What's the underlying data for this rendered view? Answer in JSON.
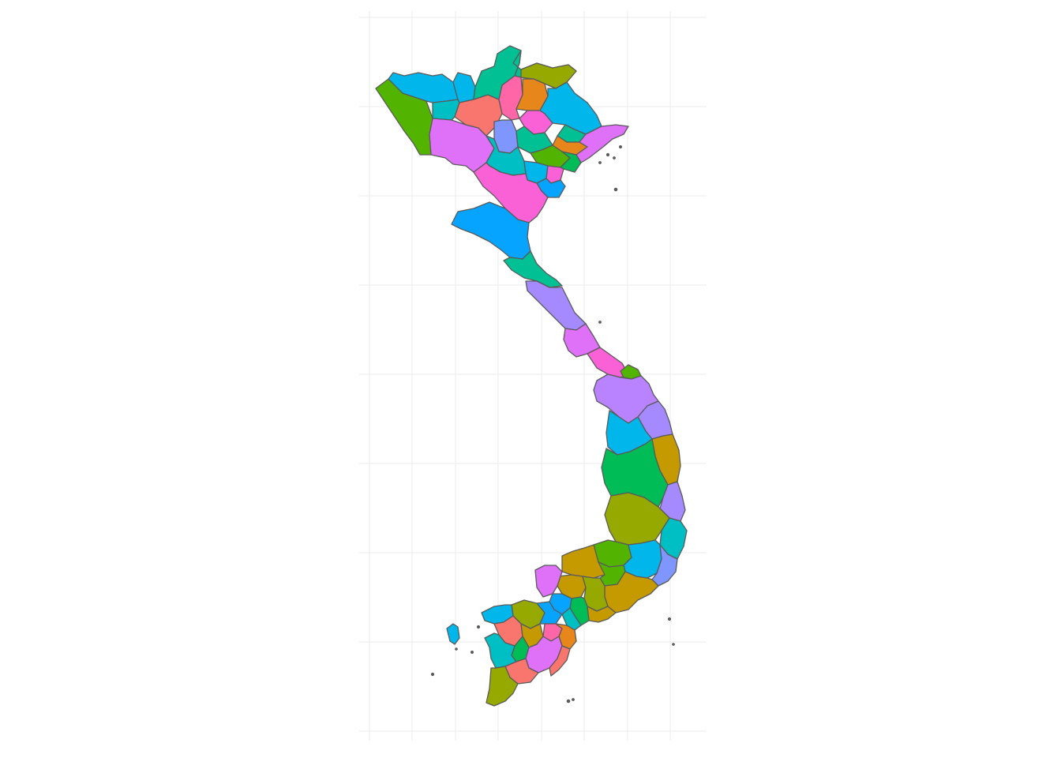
{
  "map": {
    "type": "choropleth",
    "country": "Vietnam",
    "xlabel": "",
    "ylabel": "",
    "legend": "none",
    "grid": true,
    "colors": {
      "background": "#ffffff",
      "grid": "#ebebeb",
      "border": "#5a5a5a"
    },
    "palette": [
      "#F8766D",
      "#E7861B",
      "#C49A00",
      "#95A900",
      "#53B400",
      "#00BC56",
      "#00C094",
      "#00BFC4",
      "#00B6EB",
      "#06A4FF",
      "#A58AFF",
      "#DF70F8",
      "#FB61D7",
      "#FF66A8"
    ]
  }
}
